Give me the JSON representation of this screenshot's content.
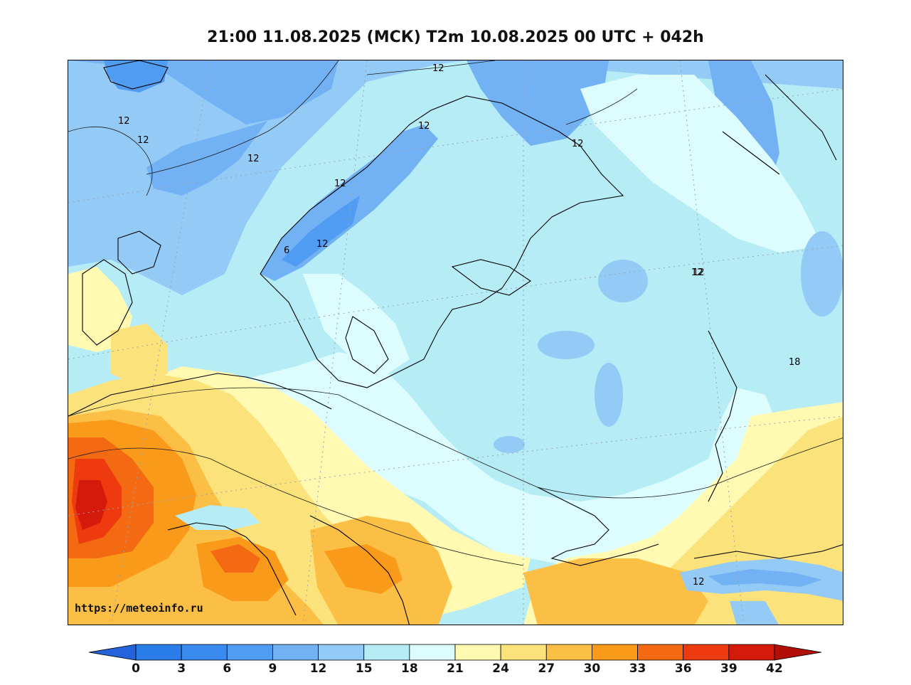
{
  "title": "21:00 11.08.2025 (МСК) T2m 10.08.2025 00 UTC + 042h",
  "watermark": "https://meteoinfo.ru",
  "contour_labels": [
    {
      "text": "12",
      "id": "c1"
    },
    {
      "text": "12",
      "id": "c2"
    },
    {
      "text": "12",
      "id": "c3"
    },
    {
      "text": "12",
      "id": "c4"
    },
    {
      "text": "12",
      "id": "c5"
    },
    {
      "text": "12",
      "id": "c6"
    },
    {
      "text": "12",
      "id": "c7"
    },
    {
      "text": "12",
      "id": "c8"
    },
    {
      "text": "12",
      "id": "c9"
    },
    {
      "text": "6",
      "id": "c10"
    },
    {
      "text": "12",
      "id": "c11"
    },
    {
      "text": "18",
      "id": "c12"
    },
    {
      "text": "12",
      "id": "c13"
    }
  ],
  "colorbar": {
    "ticks": [
      "0",
      "3",
      "6",
      "9",
      "12",
      "15",
      "18",
      "21",
      "24",
      "27",
      "30",
      "33",
      "36",
      "39",
      "42"
    ],
    "colors": [
      "#2b7de9",
      "#3a8bf0",
      "#4f9cf2",
      "#72b2f4",
      "#94cbf6",
      "#b6ecf6",
      "#dcfcfd",
      "#fff9b2",
      "#fce27a",
      "#fbbf45",
      "#f99a1a",
      "#f36a12",
      "#ed3a0e",
      "#d41a0a"
    ],
    "under_color": "#2563dd",
    "over_color": "#b10e07"
  }
}
